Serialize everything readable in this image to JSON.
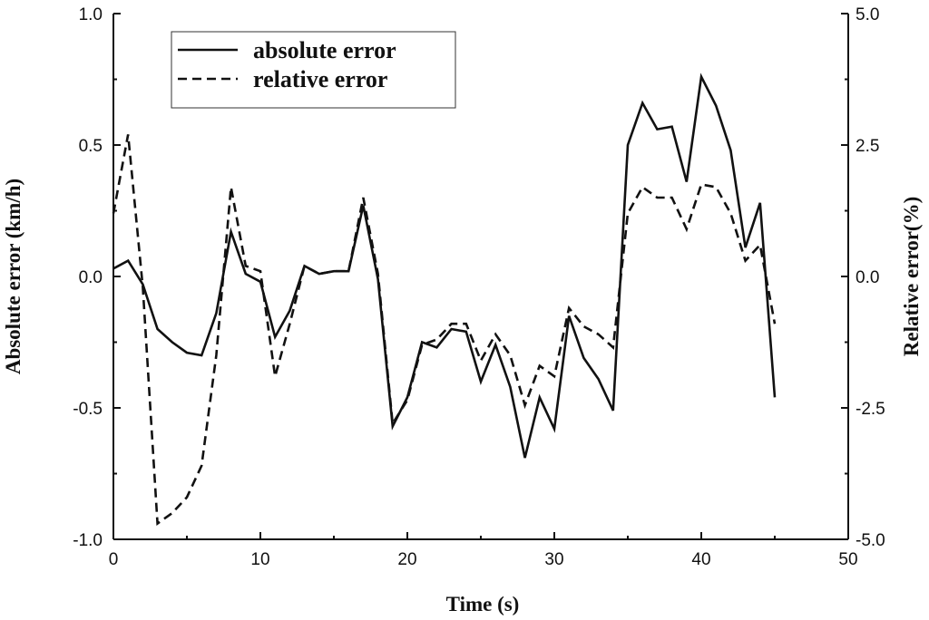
{
  "chart_data": {
    "type": "line",
    "xlabel": "Time (s)",
    "ylabel_left": "Absolute error (km/h)",
    "ylabel_right": "Relative error(%)",
    "xlim": [
      0,
      50
    ],
    "ylim_left": [
      -1.0,
      1.0
    ],
    "ylim_right": [
      -5.0,
      5.0
    ],
    "x_ticks": [
      "0",
      "10",
      "20",
      "30",
      "40",
      "50"
    ],
    "y_left_ticks": [
      "-1.0",
      "-0.5",
      "0.0",
      "0.5",
      "1.0"
    ],
    "y_right_ticks": [
      "-5.0",
      "-2.5",
      "0.0",
      "2.5",
      "5.0"
    ],
    "grid": false,
    "legend_position": "top-left",
    "series": [
      {
        "name": "absolute error",
        "axis": "left",
        "style": "solid",
        "color": "#111111",
        "x": [
          0,
          1,
          2,
          3,
          4,
          5,
          6,
          7,
          8,
          9,
          10,
          11,
          12,
          13,
          14,
          15,
          16,
          17,
          18,
          19,
          20,
          21,
          22,
          23,
          24,
          25,
          26,
          27,
          28,
          29,
          30,
          31,
          32,
          33,
          34,
          35,
          36,
          37,
          38,
          39,
          40,
          41,
          42,
          43,
          44,
          45
        ],
        "values": [
          0.03,
          0.06,
          -0.03,
          -0.2,
          -0.25,
          -0.29,
          -0.3,
          -0.14,
          0.17,
          0.01,
          -0.02,
          -0.23,
          -0.13,
          0.04,
          0.01,
          0.02,
          0.02,
          0.27,
          -0.01,
          -0.57,
          -0.46,
          -0.25,
          -0.27,
          -0.2,
          -0.21,
          -0.4,
          -0.26,
          -0.42,
          -0.69,
          -0.46,
          -0.58,
          -0.15,
          -0.31,
          -0.39,
          -0.51,
          0.5,
          0.66,
          0.56,
          0.57,
          0.36,
          0.76,
          0.65,
          0.48,
          0.11,
          0.28,
          -0.46
        ]
      },
      {
        "name": "relative error",
        "axis": "right",
        "style": "dashed",
        "color": "#111111",
        "x": [
          0,
          1,
          2,
          3,
          4,
          5,
          6,
          7,
          8,
          9,
          10,
          11,
          12,
          13,
          14,
          15,
          16,
          17,
          18,
          19,
          20,
          21,
          22,
          23,
          24,
          25,
          26,
          27,
          28,
          29,
          30,
          31,
          32,
          33,
          34,
          35,
          36,
          37,
          38,
          39,
          40,
          41,
          42,
          43,
          44,
          45
        ],
        "values": [
          1.2,
          2.7,
          -0.2,
          -4.7,
          -4.5,
          -4.2,
          -3.6,
          -1.5,
          1.7,
          0.2,
          0.1,
          -1.9,
          -0.9,
          0.2,
          0.05,
          0.1,
          0.1,
          1.5,
          0.05,
          -2.8,
          -2.35,
          -1.3,
          -1.2,
          -0.9,
          -0.9,
          -1.6,
          -1.1,
          -1.5,
          -2.45,
          -1.7,
          -1.9,
          -0.6,
          -0.95,
          -1.1,
          -1.35,
          1.2,
          1.7,
          1.5,
          1.5,
          0.9,
          1.75,
          1.7,
          1.2,
          0.3,
          0.6,
          -0.9
        ]
      }
    ]
  }
}
